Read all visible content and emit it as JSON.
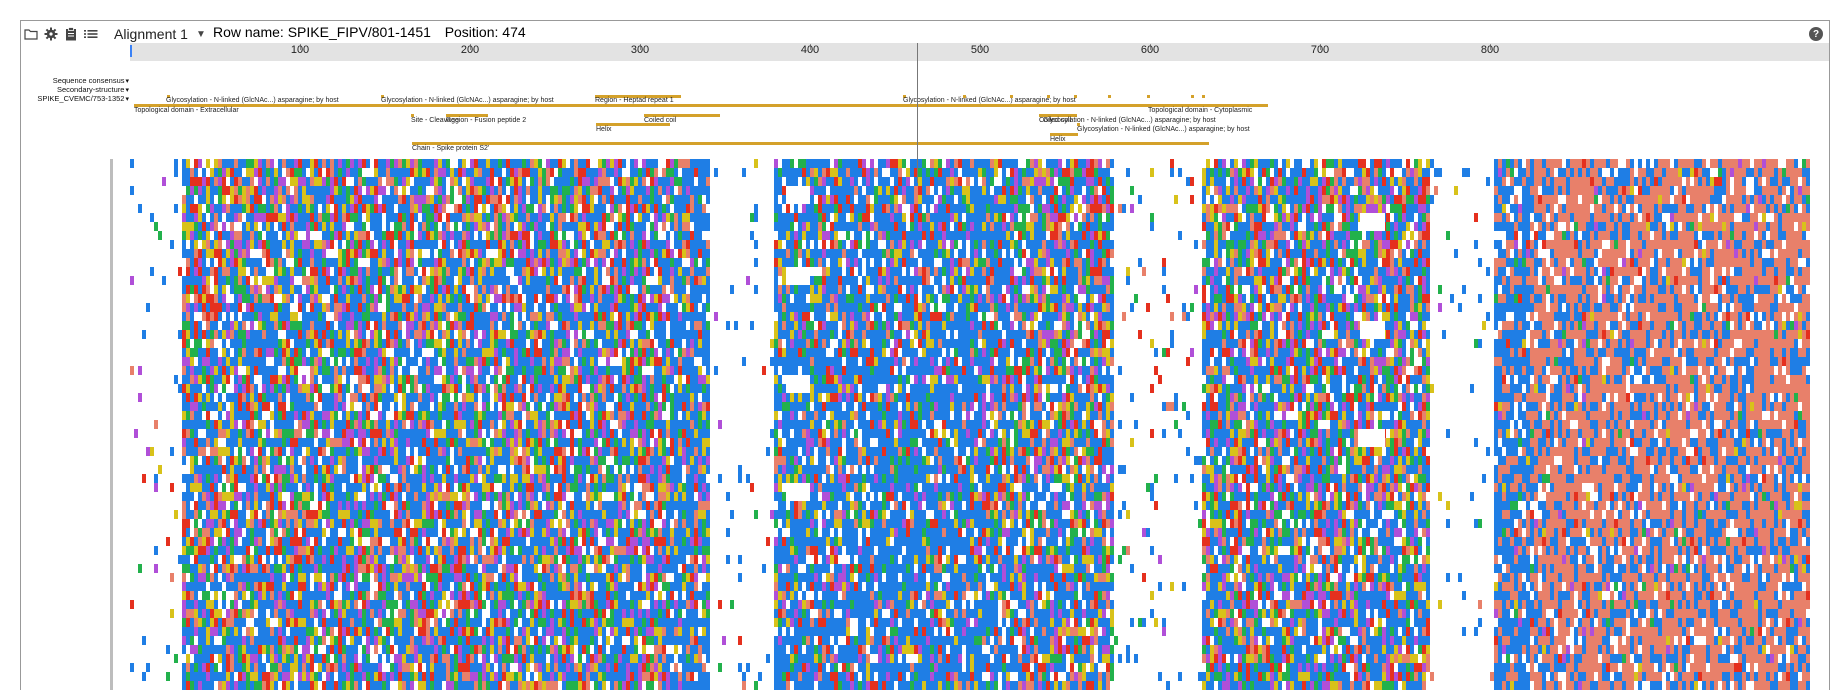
{
  "toolbar": {
    "open_icon": "folder-icon",
    "settings_icon": "gear-icon",
    "clipboard_icon": "clipboard-icon",
    "menu_icon": "list-icon",
    "alignment_select": "Alignment 1",
    "row_name_label": "Row name:",
    "row_name_value": "SPIKE_FIPV/801-1451",
    "position_label": "Position:",
    "position_value": "474",
    "help_icon": "question-circle-icon"
  },
  "tracks": [
    "Sequence consensus",
    "Secondary-structure",
    "SPIKE_CVEMC/753-1352"
  ],
  "ruler": {
    "ticks": [
      "100",
      "200",
      "300",
      "400",
      "500",
      "600",
      "700",
      "800"
    ]
  },
  "annotations": [
    {
      "label": "Topological domain - Extracellular"
    },
    {
      "label": "Glycosylation - N-linked (GlcNAc...) asparagine; by host"
    },
    {
      "label": "Glycosylation - N-linked (GlcNAc...) asparagine; by host"
    },
    {
      "label": "Site - Cleavage"
    },
    {
      "label": "Region - Fusion peptide 2"
    },
    {
      "label": "Region - Heptad repeat 1"
    },
    {
      "label": "Helix"
    },
    {
      "label": "Coiled coil"
    },
    {
      "label": "Chain - Spike protein S2'"
    },
    {
      "label": "Glycosylation - N-linked (GlcNAc...) asparagine; by host"
    },
    {
      "label": "Topological domain - Cytoplasmic"
    },
    {
      "label": "Coiled coil"
    },
    {
      "label": "Glycosylation - N-linked (GlcNAc...) asparagine; by host"
    },
    {
      "label": "Glycosylation - N-linked (GlcNAc...) asparagine; by host"
    },
    {
      "label": "Helix"
    }
  ],
  "colors": {
    "annotation_bar": "#d4a12a",
    "ruler_bg": "#e3e3e3",
    "residue_blue": "#1f7ee5",
    "residue_green": "#22b14c",
    "residue_purple": "#b04fd8",
    "residue_salmon": "#e8806a",
    "residue_red": "#e5301e",
    "residue_yellow": "#d8c21a"
  }
}
